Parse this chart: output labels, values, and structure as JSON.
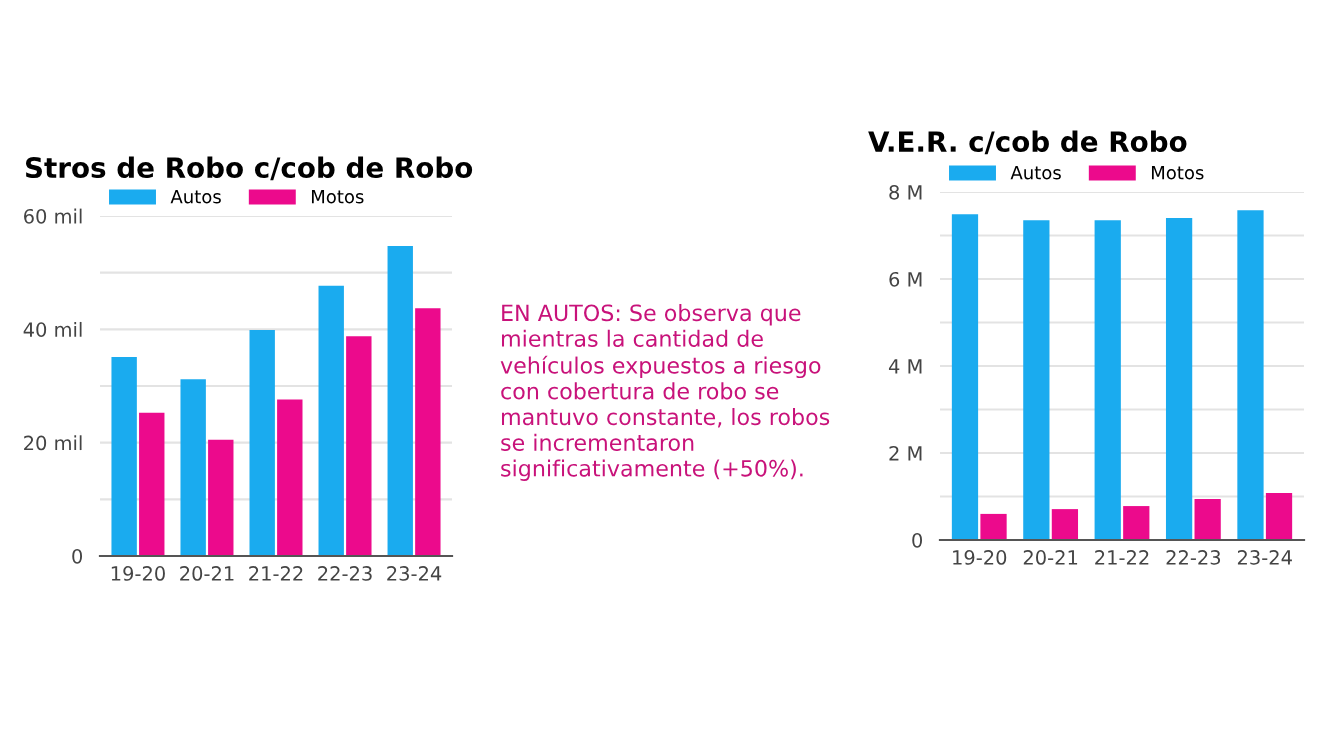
{
  "chart_data": [
    {
      "type": "bar",
      "title": "Stros de Robo c/cob de Robo",
      "categories": [
        "19-20",
        "20-21",
        "21-22",
        "22-23",
        "23-24"
      ],
      "series": [
        {
          "name": "Autos",
          "color": "#1aabef",
          "values": [
            35.1,
            31.2,
            39.9,
            47.7,
            54.7
          ]
        },
        {
          "name": "Motos",
          "color": "#ec0a8c",
          "values": [
            25.3,
            20.5,
            27.6,
            38.8,
            43.7
          ]
        }
      ],
      "ylim": [
        0,
        60
      ],
      "yticks": [
        {
          "value": 0,
          "label": "0"
        },
        {
          "value": 10,
          "label": null
        },
        {
          "value": 20,
          "label": "20 mil"
        },
        {
          "value": 30,
          "label": null
        },
        {
          "value": 40,
          "label": "40 mil"
        },
        {
          "value": 50,
          "label": null
        },
        {
          "value": 60,
          "label": "60 mil"
        }
      ],
      "grid": "y",
      "legend": "top left",
      "annotations": [
        "EN AUTOS: Se observa que mientras la cantidad de vehículos expuestos a riesgo con cobertura de robo se mantuvo constante, los robos se incrementaron significativamente (+50%)."
      ]
    },
    {
      "type": "bar",
      "title": "V.E.R. c/cob de Robo",
      "categories": [
        "19-20",
        "20-21",
        "21-22",
        "22-23",
        "23-24"
      ],
      "series": [
        {
          "name": "Autos",
          "color": "#1aabef",
          "values": [
            7.49,
            7.35,
            7.35,
            7.4,
            7.58
          ]
        },
        {
          "name": "Motos",
          "color": "#ec0a8c",
          "values": [
            0.6,
            0.71,
            0.78,
            0.94,
            1.08
          ]
        }
      ],
      "ylim": [
        0,
        8
      ],
      "yticks": [
        {
          "value": 0,
          "label": "0"
        },
        {
          "value": 1,
          "label": null
        },
        {
          "value": 2,
          "label": "2 M"
        },
        {
          "value": 3,
          "label": null
        },
        {
          "value": 4,
          "label": "4 M"
        },
        {
          "value": 5,
          "label": null
        },
        {
          "value": 6,
          "label": "6 M"
        },
        {
          "value": 7,
          "label": null
        },
        {
          "value": 8,
          "label": "8 M"
        }
      ],
      "grid": "y",
      "legend": "top left"
    }
  ]
}
